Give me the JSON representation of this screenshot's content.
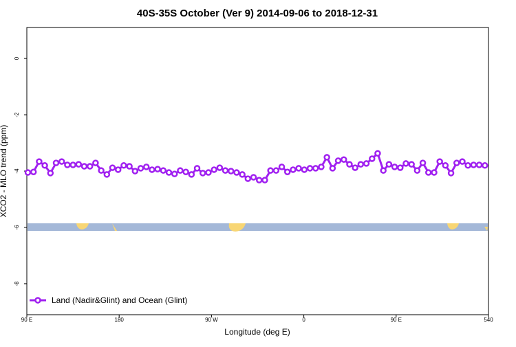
{
  "chart_data": {
    "type": "line",
    "title": "40S-35S October (Ver 9)   2014-09-06 to 2018-12-31",
    "xlabel": "Longitude (deg E)",
    "ylabel": "XCO2 - MLO trend (ppm)",
    "xlim": [
      90,
      540
    ],
    "ylim": [
      -9.1,
      1.1
    ],
    "xticks": [
      {
        "value": 90,
        "label": "90 E"
      },
      180,
      {
        "value": 270,
        "label": "90 W"
      },
      {
        "value": 360,
        "label": "0"
      },
      {
        "value": 450,
        "label": "90 E"
      },
      540
    ],
    "yticks": [
      0,
      -2,
      -4,
      -6,
      -8
    ],
    "legend": "bottom-left",
    "series": [
      {
        "name": "Land (Nadir&Glint) and Ocean (Glint)",
        "color": "#a020f0",
        "x": [
          91,
          96.5,
          102,
          107.5,
          113,
          118.5,
          124,
          129.5,
          135,
          140.5,
          146,
          151.5,
          157,
          162.5,
          168,
          173.5,
          179,
          184.5,
          190,
          195.5,
          201,
          206.5,
          212,
          217.5,
          223,
          228.5,
          234,
          239.5,
          245,
          250.5,
          256,
          261.5,
          267,
          272.5,
          278,
          283.5,
          289,
          294.5,
          300,
          305.5,
          311,
          316.5,
          322,
          327.5,
          333,
          338.5,
          344,
          349.5,
          355,
          360.5,
          366,
          371.5,
          377,
          382.5,
          388,
          393.5,
          399,
          404.5,
          410,
          415.5,
          421,
          426.5,
          432,
          437.5,
          443,
          448.5,
          454,
          459.5,
          465,
          470.5,
          476,
          481.5,
          487,
          492.5,
          498,
          503.5,
          509,
          514.5,
          520,
          525.5,
          531,
          536.5
        ],
        "values": [
          -4.05,
          -4.03,
          -3.66,
          -3.8,
          -4.07,
          -3.71,
          -3.66,
          -3.78,
          -3.78,
          -3.76,
          -3.83,
          -3.83,
          -3.71,
          -3.98,
          -4.12,
          -3.88,
          -3.95,
          -3.8,
          -3.83,
          -4.0,
          -3.9,
          -3.85,
          -3.95,
          -3.93,
          -3.98,
          -4.05,
          -4.1,
          -3.98,
          -4.03,
          -4.12,
          -3.9,
          -4.07,
          -4.05,
          -3.95,
          -3.88,
          -3.98,
          -4.0,
          -4.05,
          -4.12,
          -4.27,
          -4.22,
          -4.32,
          -4.32,
          -3.98,
          -3.98,
          -3.85,
          -4.03,
          -3.95,
          -3.9,
          -3.95,
          -3.9,
          -3.9,
          -3.85,
          -3.51,
          -3.9,
          -3.63,
          -3.59,
          -3.76,
          -3.88,
          -3.76,
          -3.73,
          -3.56,
          -3.37,
          -3.98,
          -3.76,
          -3.85,
          -3.88,
          -3.73,
          -3.76,
          -3.98,
          -3.71,
          -4.05,
          -4.05,
          -3.66,
          -3.8,
          -4.07,
          -3.71,
          -3.66,
          -3.8,
          -3.78,
          -3.78,
          -3.8
        ]
      }
    ]
  }
}
